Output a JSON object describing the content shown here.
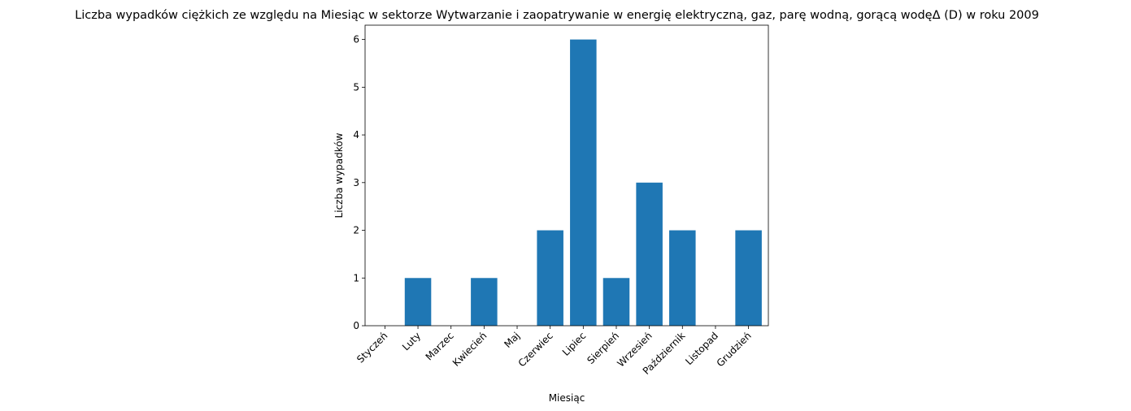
{
  "chart_data": {
    "type": "bar",
    "title": "Liczba wypadków ciężkich ze względu na Miesiąc w sektorze Wytwarzanie i zaopatrywanie w energię elektryczną, gaz, parę wodną, gorącą wodęΔ  (D) w roku 2009",
    "xlabel": "Miesiąc",
    "ylabel": "Liczba wypadków",
    "categories": [
      "Styczeń",
      "Luty",
      "Marzec",
      "Kwiecień",
      "Maj",
      "Czerwiec",
      "Lipiec",
      "Sierpień",
      "Wrzesień",
      "Październik",
      "Listopad",
      "Grudzień"
    ],
    "values": [
      0,
      1,
      0,
      1,
      0,
      2,
      6,
      1,
      3,
      2,
      0,
      2
    ],
    "ylim": [
      0,
      6.3
    ],
    "yticks": [
      0,
      1,
      2,
      3,
      4,
      5,
      6
    ],
    "grid": false,
    "bar_color": "#1f77b4"
  }
}
